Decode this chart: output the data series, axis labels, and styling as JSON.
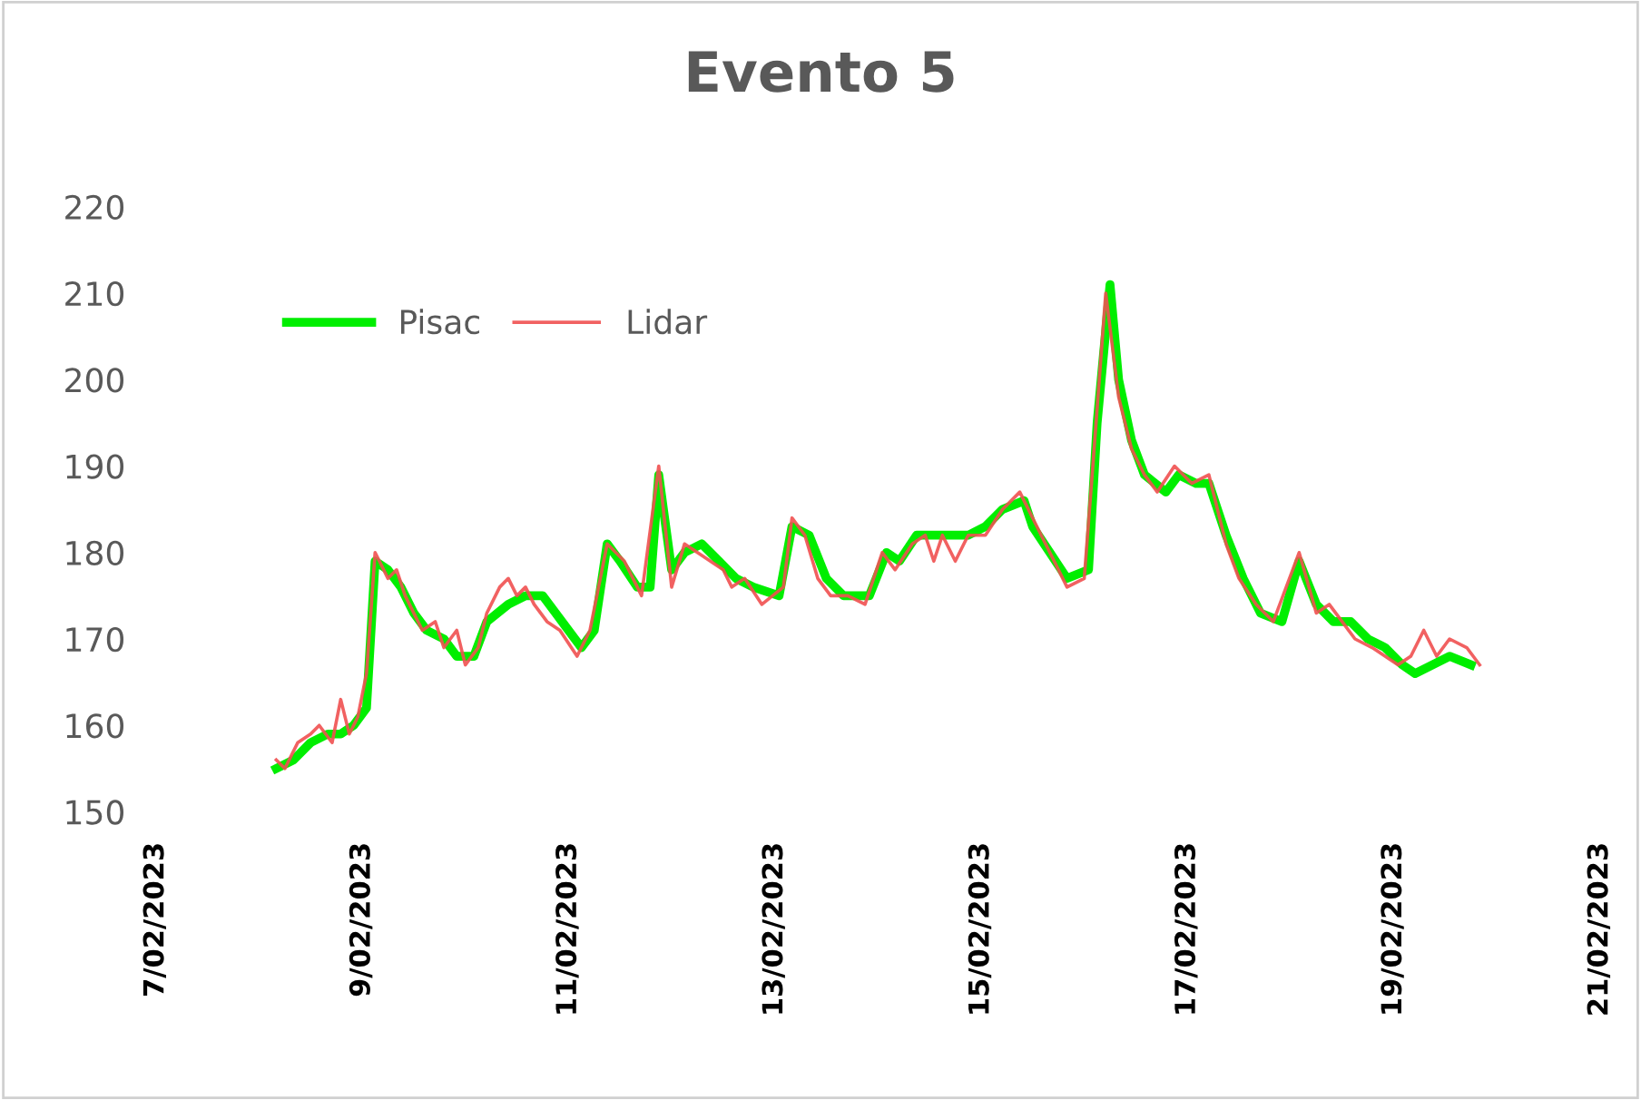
{
  "chart_data": {
    "type": "line",
    "title": "Evento 5",
    "xlim": [
      "2023-02-07",
      "2023-02-21"
    ],
    "xticks": [
      {
        "value": "2023-02-07",
        "label": "7/02/2023"
      },
      {
        "value": "2023-02-09",
        "label": "9/02/2023"
      },
      {
        "value": "2023-02-11",
        "label": "11/02/2023"
      },
      {
        "value": "2023-02-13",
        "label": "13/02/2023"
      },
      {
        "value": "2023-02-15",
        "label": "15/02/2023"
      },
      {
        "value": "2023-02-17",
        "label": "17/02/2023"
      },
      {
        "value": "2023-02-19",
        "label": "19/02/2023"
      },
      {
        "value": "2023-02-21",
        "label": "21/02/2023"
      }
    ],
    "ylim": [
      150,
      220
    ],
    "yticks": [
      150,
      160,
      170,
      180,
      190,
      200,
      210,
      220
    ],
    "grid": false,
    "legend": "top left",
    "marker": "none",
    "line_style": "solid",
    "series": [
      {
        "name": "Pisac",
        "color": "#00ee00",
        "x": [
          "2023-02-08T04:00",
          "2023-02-08T08:00",
          "2023-02-08T12:00",
          "2023-02-08T16:00",
          "2023-02-08T19:00",
          "2023-02-08T22:00",
          "2023-02-09T01:00",
          "2023-02-09T03:00",
          "2023-02-09T06:00",
          "2023-02-09T09:00",
          "2023-02-09T12:00",
          "2023-02-09T15:00",
          "2023-02-09T19:00",
          "2023-02-09T22:00",
          "2023-02-10T02:00",
          "2023-02-10T05:00",
          "2023-02-10T10:00",
          "2023-02-10T14:00",
          "2023-02-10T18:00",
          "2023-02-10T21:00",
          "2023-02-11T00:00",
          "2023-02-11T03:00",
          "2023-02-11T06:00",
          "2023-02-11T09:00",
          "2023-02-11T12:00",
          "2023-02-11T16:00",
          "2023-02-11T19:00",
          "2023-02-11T21:00",
          "2023-02-12T00:00",
          "2023-02-12T03:00",
          "2023-02-12T07:00",
          "2023-02-12T11:00",
          "2023-02-12T15:00",
          "2023-02-12T19:00",
          "2023-02-13T01:00",
          "2023-02-13T04:00",
          "2023-02-13T08:00",
          "2023-02-13T12:00",
          "2023-02-13T16:00",
          "2023-02-13T22:00",
          "2023-02-14T02:00",
          "2023-02-14T05:00",
          "2023-02-14T09:00",
          "2023-02-14T15:00",
          "2023-02-14T21:00",
          "2023-02-15T01:00",
          "2023-02-15T05:00",
          "2023-02-15T10:00",
          "2023-02-15T12:00",
          "2023-02-15T16:00",
          "2023-02-15T20:00",
          "2023-02-16T01:00",
          "2023-02-16T03:00",
          "2023-02-16T06:00",
          "2023-02-16T08:00",
          "2023-02-16T11:00",
          "2023-02-16T14:00",
          "2023-02-16T19:00",
          "2023-02-16T22:00",
          "2023-02-17T02:00",
          "2023-02-17T05:00",
          "2023-02-17T09:00",
          "2023-02-17T13:00",
          "2023-02-17T17:00",
          "2023-02-17T22:00",
          "2023-02-18T02:00",
          "2023-02-18T06:00",
          "2023-02-18T10:00",
          "2023-02-18T14:00",
          "2023-02-18T18:00",
          "2023-02-18T22:00",
          "2023-02-19T02:00",
          "2023-02-19T05:00",
          "2023-02-19T09:00",
          "2023-02-19T13:00",
          "2023-02-19T18:00"
        ],
        "values": [
          155,
          156,
          158,
          159,
          159,
          160,
          162,
          179,
          178,
          176,
          173,
          171,
          170,
          168,
          168,
          172,
          174,
          175,
          175,
          173,
          171,
          169,
          171,
          181,
          179,
          176,
          176,
          189,
          178,
          180,
          181,
          179,
          177,
          176,
          175,
          183,
          182,
          177,
          175,
          175,
          180,
          179,
          182,
          182,
          182,
          183,
          185,
          186,
          183,
          180,
          177,
          178,
          195,
          211,
          200,
          193,
          189,
          187,
          189,
          188,
          188,
          182,
          177,
          173,
          172,
          179,
          174,
          172,
          172,
          170,
          169,
          167,
          166,
          167,
          168,
          167
        ]
      },
      {
        "name": "Lidar",
        "color": "#f05050",
        "x": [
          "2023-02-08T04:00",
          "2023-02-08T06:00",
          "2023-02-08T09:00",
          "2023-02-08T12:00",
          "2023-02-08T14:00",
          "2023-02-08T17:00",
          "2023-02-08T19:00",
          "2023-02-08T21:00",
          "2023-02-08T23:00",
          "2023-02-09T01:00",
          "2023-02-09T03:00",
          "2023-02-09T06:00",
          "2023-02-09T08:00",
          "2023-02-09T10:00",
          "2023-02-09T14:00",
          "2023-02-09T17:00",
          "2023-02-09T19:00",
          "2023-02-09T22:00",
          "2023-02-10T00:00",
          "2023-02-10T03:00",
          "2023-02-10T05:00",
          "2023-02-10T08:00",
          "2023-02-10T10:00",
          "2023-02-10T12:00",
          "2023-02-10T14:00",
          "2023-02-10T16:00",
          "2023-02-10T19:00",
          "2023-02-10T22:00",
          "2023-02-11T02:00",
          "2023-02-11T05:00",
          "2023-02-11T09:00",
          "2023-02-11T13:00",
          "2023-02-11T17:00",
          "2023-02-11T21:00",
          "2023-02-12T00:00",
          "2023-02-12T03:00",
          "2023-02-12T06:00",
          "2023-02-12T09:00",
          "2023-02-12T12:00",
          "2023-02-12T14:00",
          "2023-02-12T17:00",
          "2023-02-12T21:00",
          "2023-02-13T02:00",
          "2023-02-13T04:00",
          "2023-02-13T07:00",
          "2023-02-13T10:00",
          "2023-02-13T13:00",
          "2023-02-13T17:00",
          "2023-02-13T21:00",
          "2023-02-14T01:00",
          "2023-02-14T04:00",
          "2023-02-14T08:00",
          "2023-02-14T11:00",
          "2023-02-14T13:00",
          "2023-02-14T15:00",
          "2023-02-14T18:00",
          "2023-02-14T21:00",
          "2023-02-15T01:00",
          "2023-02-15T05:00",
          "2023-02-15T09:00",
          "2023-02-15T13:00",
          "2023-02-15T17:00",
          "2023-02-15T20:00",
          "2023-02-16T00:00",
          "2023-02-16T02:00",
          "2023-02-16T05:00",
          "2023-02-16T08:00",
          "2023-02-16T11:00",
          "2023-02-16T14:00",
          "2023-02-16T17:00",
          "2023-02-16T21:00",
          "2023-02-17T01:00",
          "2023-02-17T05:00",
          "2023-02-17T09:00",
          "2023-02-17T12:00",
          "2023-02-17T16:00",
          "2023-02-17T20:00",
          "2023-02-18T02:00",
          "2023-02-18T06:00",
          "2023-02-18T09:00",
          "2023-02-18T12:00",
          "2023-02-18T15:00",
          "2023-02-18T19:00",
          "2023-02-18T22:00",
          "2023-02-19T01:00",
          "2023-02-19T04:00",
          "2023-02-19T07:00",
          "2023-02-19T10:00",
          "2023-02-19T13:00",
          "2023-02-19T17:00",
          "2023-02-19T20:00"
        ],
        "values": [
          156,
          155,
          158,
          159,
          160,
          158,
          163,
          159,
          161,
          166,
          180,
          177,
          178,
          175,
          171,
          172,
          169,
          171,
          167,
          169,
          173,
          176,
          177,
          175,
          176,
          174,
          172,
          171,
          168,
          171,
          181,
          179,
          175,
          190,
          176,
          181,
          180,
          179,
          178,
          176,
          177,
          174,
          176,
          184,
          182,
          177,
          175,
          175,
          174,
          180,
          178,
          181,
          182,
          179,
          182,
          179,
          182,
          182,
          185,
          187,
          183,
          179,
          176,
          177,
          190,
          210,
          198,
          192,
          189,
          187,
          190,
          188,
          189,
          181,
          177,
          174,
          172,
          180,
          173,
          174,
          172,
          170,
          169,
          168,
          167,
          168,
          171,
          168,
          170,
          169,
          167
        ]
      }
    ]
  }
}
